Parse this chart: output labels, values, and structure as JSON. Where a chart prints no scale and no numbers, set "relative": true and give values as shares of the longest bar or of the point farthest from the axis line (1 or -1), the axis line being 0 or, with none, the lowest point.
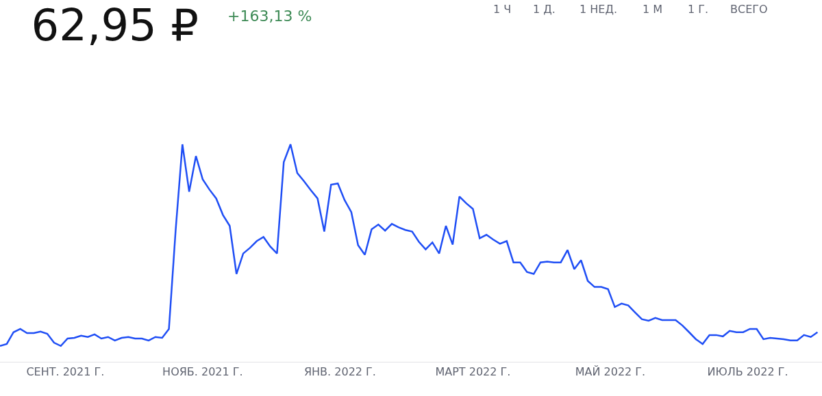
{
  "chart_data": {
    "type": "line",
    "title": "62,95 ₽",
    "subtitle": "+163,13 %",
    "annotations": [
      "1 Ч",
      "1 Д.",
      "1 НЕД.",
      "1 М",
      "1 Г.",
      "ВСЕГО"
    ],
    "relative": true,
    "x": [
      "2021-08-03",
      "2021-08-06",
      "2021-08-09",
      "2021-08-12",
      "2021-08-15",
      "2021-08-18",
      "2021-08-21",
      "2021-08-24",
      "2021-08-27",
      "2021-08-30",
      "2021-09-02",
      "2021-09-05",
      "2021-09-08",
      "2021-09-11",
      "2021-09-14",
      "2021-09-17",
      "2021-09-20",
      "2021-09-23",
      "2021-09-26",
      "2021-09-29",
      "2021-10-02",
      "2021-10-05",
      "2021-10-08",
      "2021-10-11",
      "2021-10-14",
      "2021-10-17",
      "2021-10-20",
      "2021-10-23",
      "2021-10-26",
      "2021-10-29",
      "2021-11-01",
      "2021-11-04",
      "2021-11-07",
      "2021-11-10",
      "2021-11-13",
      "2021-11-16",
      "2021-11-19",
      "2021-11-22",
      "2021-11-25",
      "2021-11-28",
      "2021-12-01",
      "2021-12-04",
      "2021-12-07",
      "2021-12-10",
      "2021-12-13",
      "2021-12-16",
      "2021-12-19",
      "2021-12-22",
      "2021-12-25",
      "2021-12-28",
      "2021-12-31",
      "2022-01-03",
      "2022-01-06",
      "2022-01-09",
      "2022-01-12",
      "2022-01-15",
      "2022-01-18",
      "2022-01-21",
      "2022-01-24",
      "2022-01-27",
      "2022-01-30",
      "2022-02-02",
      "2022-02-05",
      "2022-02-08",
      "2022-02-11",
      "2022-02-14",
      "2022-02-17",
      "2022-02-20",
      "2022-02-23",
      "2022-02-26",
      "2022-03-01",
      "2022-03-04",
      "2022-03-07",
      "2022-03-10",
      "2022-03-13",
      "2022-03-16",
      "2022-03-19",
      "2022-03-22",
      "2022-03-25",
      "2022-03-28",
      "2022-03-31",
      "2022-04-03",
      "2022-04-06",
      "2022-04-09",
      "2022-04-12",
      "2022-04-15",
      "2022-04-18",
      "2022-04-21",
      "2022-04-24",
      "2022-04-27",
      "2022-04-30",
      "2022-05-03",
      "2022-05-06",
      "2022-05-09",
      "2022-05-12",
      "2022-05-15",
      "2022-05-18",
      "2022-05-21",
      "2022-05-24",
      "2022-05-27",
      "2022-05-30",
      "2022-06-02",
      "2022-06-05",
      "2022-06-08",
      "2022-06-11",
      "2022-06-14",
      "2022-06-17",
      "2022-06-20",
      "2022-06-23",
      "2022-06-26",
      "2022-06-29",
      "2022-07-02",
      "2022-07-05",
      "2022-07-08",
      "2022-07-11",
      "2022-07-14",
      "2022-07-17",
      "2022-07-20",
      "2022-07-23",
      "2022-07-26",
      "2022-07-29",
      "2022-08-01"
    ],
    "series": [
      {
        "color": "#1f4ef5",
        "values": [
          0.073,
          0.082,
          0.136,
          0.151,
          0.132,
          0.132,
          0.139,
          0.129,
          0.088,
          0.073,
          0.107,
          0.11,
          0.12,
          0.114,
          0.126,
          0.107,
          0.114,
          0.098,
          0.11,
          0.114,
          0.107,
          0.107,
          0.098,
          0.114,
          0.11,
          0.151,
          0.606,
          1.0,
          0.782,
          0.946,
          0.839,
          0.792,
          0.751,
          0.675,
          0.625,
          0.404,
          0.498,
          0.524,
          0.555,
          0.574,
          0.53,
          0.498,
          0.918,
          1.0,
          0.868,
          0.83,
          0.789,
          0.751,
          0.599,
          0.814,
          0.82,
          0.744,
          0.688,
          0.536,
          0.492,
          0.609,
          0.631,
          0.603,
          0.634,
          0.618,
          0.606,
          0.599,
          0.552,
          0.517,
          0.549,
          0.498,
          0.625,
          0.539,
          0.76,
          0.729,
          0.703,
          0.568,
          0.584,
          0.562,
          0.543,
          0.555,
          0.457,
          0.457,
          0.413,
          0.404,
          0.457,
          0.461,
          0.457,
          0.457,
          0.514,
          0.426,
          0.467,
          0.372,
          0.344,
          0.344,
          0.334,
          0.252,
          0.268,
          0.259,
          0.227,
          0.196,
          0.189,
          0.202,
          0.192,
          0.192,
          0.192,
          0.167,
          0.136,
          0.104,
          0.082,
          0.123,
          0.123,
          0.117,
          0.142,
          0.136,
          0.136,
          0.151,
          0.151,
          0.104,
          0.11,
          0.107,
          0.104,
          0.098,
          0.098,
          0.123,
          0.114,
          0.136
        ]
      }
    ],
    "xlim": [
      "2021-08-03",
      "2022-08-03"
    ],
    "xticks": [
      {
        "value": "2021-09-01",
        "label": "СЕНТ. 2021 Г."
      },
      {
        "value": "2021-11-01",
        "label": "НОЯБ. 2021 Г."
      },
      {
        "value": "2022-01-01",
        "label": "ЯНВ. 2022 Г."
      },
      {
        "value": "2022-03-01",
        "label": "МАРТ 2022 Г."
      },
      {
        "value": "2022-05-01",
        "label": "МАЙ 2022 Г."
      },
      {
        "value": "2022-07-01",
        "label": "ИЮЛЬ 2022 Г."
      }
    ],
    "marker": "none",
    "line_style": "solid"
  }
}
